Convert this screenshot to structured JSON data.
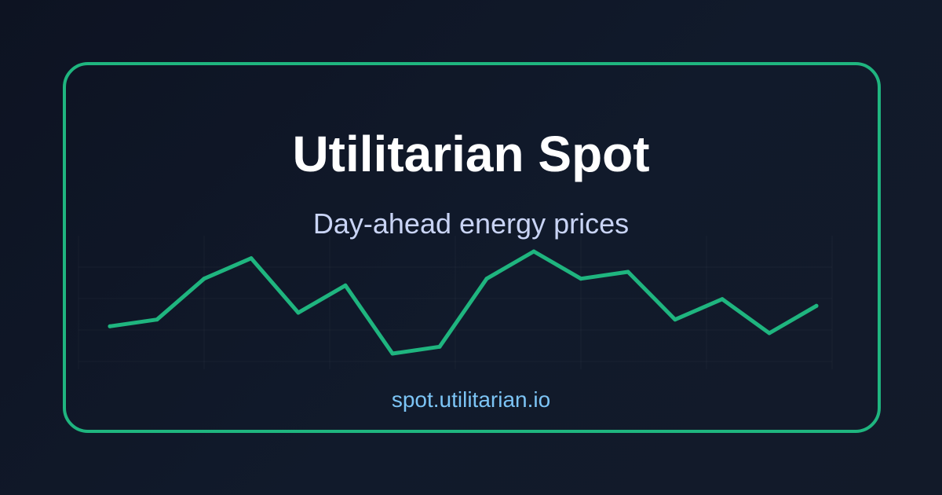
{
  "brand": {
    "title": "Utilitarian Spot",
    "subtitle": "Day-ahead energy prices",
    "url": "spot.utilitarian.io"
  },
  "colors": {
    "background": "#0f1626",
    "accent": "#1fb57f",
    "title": "#ffffff",
    "subtitle": "#c9d4f5",
    "url": "#7cc4f5"
  },
  "chart_data": {
    "type": "line",
    "x": [
      1,
      2,
      3,
      4,
      5,
      6,
      7,
      8,
      9,
      10,
      11,
      12,
      13,
      14,
      15,
      16
    ],
    "series": [
      {
        "values": [
          2.0,
          3.0,
          9.0,
          12.0,
          4.0,
          8.0,
          -2.0,
          -1.0,
          9.0,
          13.0,
          9.0,
          10.0,
          3.0,
          6.0,
          1.0,
          5.0
        ]
      }
    ],
    "ylim": [
      -2,
      13
    ],
    "grid": true,
    "legend": "none",
    "title": "",
    "xlabel": "",
    "ylabel": ""
  }
}
